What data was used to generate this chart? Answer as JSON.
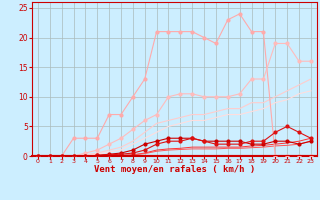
{
  "title": "",
  "xlabel": "Vent moyen/en rafales ( km/h )",
  "xlim": [
    -0.5,
    23.5
  ],
  "ylim": [
    0,
    26
  ],
  "xticks": [
    0,
    1,
    2,
    3,
    4,
    5,
    6,
    7,
    8,
    9,
    10,
    11,
    12,
    13,
    14,
    15,
    16,
    17,
    18,
    19,
    20,
    21,
    22,
    23
  ],
  "yticks": [
    0,
    5,
    10,
    15,
    20,
    25
  ],
  "background_color": "#cceeff",
  "grid_color": "#aabbbb",
  "series": [
    {
      "x": [
        0,
        1,
        2,
        3,
        4,
        5,
        6,
        7,
        8,
        9,
        10,
        11,
        12,
        13,
        14,
        15,
        16,
        17,
        18,
        19,
        20,
        21,
        22,
        23
      ],
      "y": [
        0,
        0,
        0,
        3,
        3,
        3,
        7,
        7,
        10,
        13,
        21,
        21,
        21,
        21,
        20,
        19,
        23,
        24,
        21,
        21,
        0,
        0,
        0,
        0
      ],
      "color": "#ffaaaa",
      "linewidth": 0.8,
      "marker": "o",
      "markersize": 2.0,
      "zorder": 3
    },
    {
      "x": [
        0,
        1,
        2,
        3,
        4,
        5,
        6,
        7,
        8,
        9,
        10,
        11,
        12,
        13,
        14,
        15,
        16,
        17,
        18,
        19,
        20,
        21,
        22,
        23
      ],
      "y": [
        0,
        0,
        0,
        0,
        0.5,
        1,
        2,
        3,
        4.5,
        6,
        7,
        10,
        10.5,
        10.5,
        10,
        10,
        10,
        10.5,
        13,
        13,
        19,
        19,
        16,
        16
      ],
      "color": "#ffbbbb",
      "linewidth": 0.8,
      "marker": "o",
      "markersize": 2.0,
      "zorder": 3
    },
    {
      "x": [
        0,
        1,
        2,
        3,
        4,
        5,
        6,
        7,
        8,
        9,
        10,
        11,
        12,
        13,
        14,
        15,
        16,
        17,
        18,
        19,
        20,
        21,
        22,
        23
      ],
      "y": [
        0,
        0,
        0,
        0,
        0.2,
        0.5,
        1,
        1.5,
        2.5,
        4,
        5.5,
        6,
        6.5,
        7,
        7,
        7.5,
        8,
        8,
        9,
        9,
        10,
        11,
        12,
        13
      ],
      "color": "#ffcccc",
      "linewidth": 0.8,
      "marker": null,
      "markersize": 0,
      "zorder": 2
    },
    {
      "x": [
        0,
        1,
        2,
        3,
        4,
        5,
        6,
        7,
        8,
        9,
        10,
        11,
        12,
        13,
        14,
        15,
        16,
        17,
        18,
        19,
        20,
        21,
        22,
        23
      ],
      "y": [
        0,
        0,
        0,
        0,
        0.1,
        0.3,
        0.7,
        1,
        2,
        3,
        4,
        5,
        5.5,
        6,
        6,
        6.5,
        7,
        7,
        7.5,
        8,
        9,
        9.5,
        10.5,
        11
      ],
      "color": "#ffdddd",
      "linewidth": 0.8,
      "marker": null,
      "markersize": 0,
      "zorder": 2
    },
    {
      "x": [
        0,
        1,
        2,
        3,
        4,
        5,
        6,
        7,
        8,
        9,
        10,
        11,
        12,
        13,
        14,
        15,
        16,
        17,
        18,
        19,
        20,
        21,
        22,
        23
      ],
      "y": [
        0,
        0,
        0,
        0,
        0,
        0.1,
        0.3,
        0.5,
        1,
        2,
        2.5,
        3,
        3,
        3,
        2.5,
        2.5,
        2.5,
        2.5,
        2,
        2,
        2.5,
        2.5,
        2,
        2.5
      ],
      "color": "#cc0000",
      "linewidth": 0.8,
      "marker": "o",
      "markersize": 2.0,
      "zorder": 4
    },
    {
      "x": [
        0,
        1,
        2,
        3,
        4,
        5,
        6,
        7,
        8,
        9,
        10,
        11,
        12,
        13,
        14,
        15,
        16,
        17,
        18,
        19,
        20,
        21,
        22,
        23
      ],
      "y": [
        0,
        0,
        0,
        0,
        0,
        0.1,
        0.2,
        0.3,
        0.5,
        1,
        2,
        2.5,
        2.5,
        3,
        2.5,
        2,
        2,
        2,
        2.5,
        2.5,
        4,
        5,
        4,
        3
      ],
      "color": "#dd1111",
      "linewidth": 0.8,
      "marker": "o",
      "markersize": 2.0,
      "zorder": 4
    },
    {
      "x": [
        0,
        1,
        2,
        3,
        4,
        5,
        6,
        7,
        8,
        9,
        10,
        11,
        12,
        13,
        14,
        15,
        16,
        17,
        18,
        19,
        20,
        21,
        22,
        23
      ],
      "y": [
        0,
        0,
        0,
        0,
        0,
        0,
        0.1,
        0.1,
        0.2,
        0.5,
        1,
        1.2,
        1.3,
        1.5,
        1.5,
        1.5,
        1.5,
        1.5,
        1.7,
        1.8,
        2,
        2.2,
        2.5,
        3
      ],
      "color": "#ff3333",
      "linewidth": 0.7,
      "marker": null,
      "markersize": 0,
      "zorder": 2
    },
    {
      "x": [
        0,
        1,
        2,
        3,
        4,
        5,
        6,
        7,
        8,
        9,
        10,
        11,
        12,
        13,
        14,
        15,
        16,
        17,
        18,
        19,
        20,
        21,
        22,
        23
      ],
      "y": [
        0,
        0,
        0,
        0,
        0,
        0,
        0.1,
        0.1,
        0.2,
        0.4,
        0.8,
        1,
        1.1,
        1.2,
        1.2,
        1.2,
        1.3,
        1.3,
        1.4,
        1.5,
        1.7,
        1.8,
        2,
        2.5
      ],
      "color": "#ff5555",
      "linewidth": 0.7,
      "marker": null,
      "markersize": 0,
      "zorder": 2
    }
  ]
}
